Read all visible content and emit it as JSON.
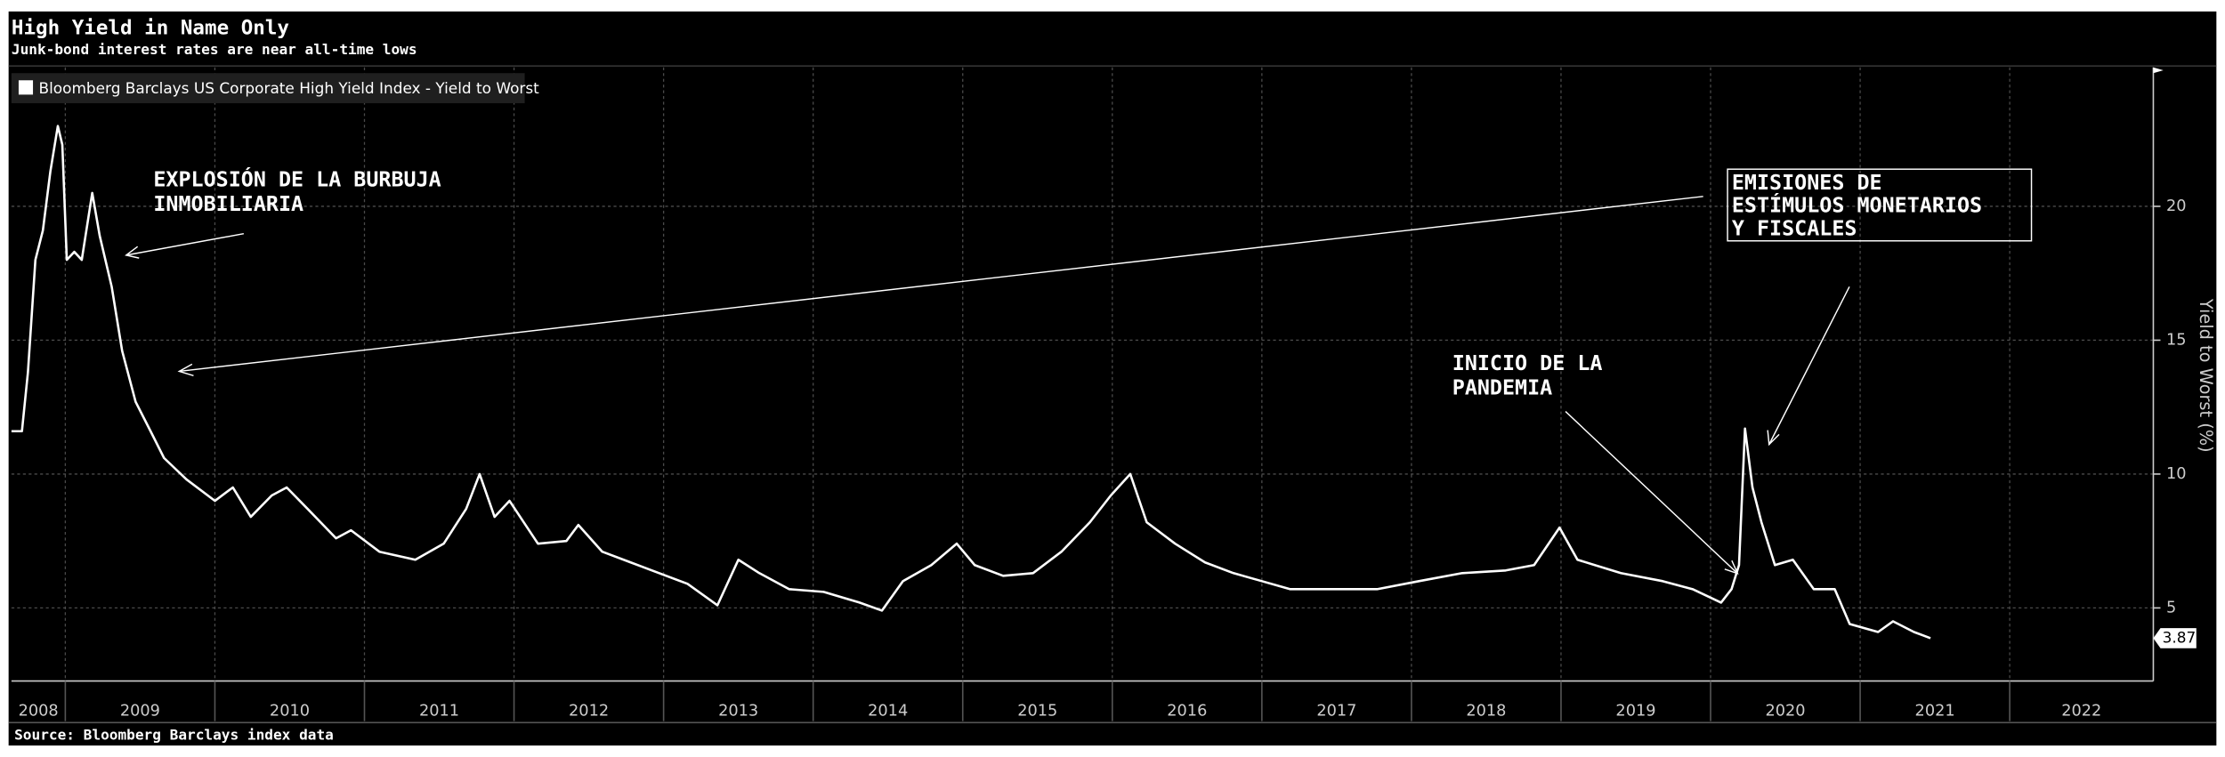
{
  "chart_data": {
    "type": "line",
    "title": "High Yield in Name Only",
    "subtitle": "Junk-bond interest rates are near all-time lows",
    "y_label": "Yield to Worst (%)",
    "source": "Source: Bloomberg Barclays index data",
    "series": [
      {
        "name": "Bloomberg Barclays US Corporate High Yield Index - Yield to Worst",
        "color": "#ffffff",
        "values": [
          11.6,
          11.6,
          13.8,
          18,
          19.1,
          21.3,
          23,
          22.3,
          18,
          18.3,
          18,
          20.5,
          18.9,
          17,
          14.6,
          12.7,
          11.6,
          10.6,
          9.8,
          9,
          9.5,
          8.4,
          9.2,
          9.5,
          8.7,
          7.6,
          7.9,
          7.1,
          6.8,
          7.4,
          8.7,
          10,
          8.4,
          9,
          7.4,
          7.5,
          8.1,
          7.1,
          6.7,
          6.3,
          5.9,
          5.1,
          6.8,
          6.3,
          5.7,
          5.6,
          5.2,
          4.9,
          6,
          6.6,
          7.4,
          6.6,
          6.2,
          6.3,
          7.1,
          8.2,
          9.2,
          10,
          8.2,
          7.4,
          6.7,
          6.3,
          6,
          5.7,
          5.7,
          5.7,
          6,
          6.3,
          6.4,
          6.6,
          8,
          6.8,
          6.3,
          6,
          5.7,
          5.2,
          5.7,
          6.6,
          11.7,
          9.5,
          8.2,
          6.6,
          6.8,
          5.7,
          5.7,
          4.4,
          4.1,
          4.5,
          4.1,
          3.87
        ]
      }
    ],
    "x": [
      2008.64,
      2008.71,
      2008.75,
      2008.8,
      2008.85,
      2008.9,
      2008.95,
      2008.98,
      2009.01,
      2009.06,
      2009.11,
      2009.18,
      2009.23,
      2009.31,
      2009.38,
      2009.47,
      2009.57,
      2009.66,
      2009.81,
      2010.0,
      2010.12,
      2010.24,
      2010.38,
      2010.48,
      2010.62,
      2010.81,
      2010.91,
      2011.1,
      2011.34,
      2011.53,
      2011.68,
      2011.77,
      2011.87,
      2011.97,
      2012.16,
      2012.35,
      2012.43,
      2012.59,
      2012.78,
      2012.97,
      2013.16,
      2013.36,
      2013.5,
      2013.64,
      2013.84,
      2014.07,
      2014.31,
      2014.46,
      2014.6,
      2014.79,
      2014.96,
      2015.08,
      2015.27,
      2015.47,
      2015.66,
      2015.85,
      2015.99,
      2016.12,
      2016.23,
      2016.42,
      2016.62,
      2016.81,
      2017.0,
      2017.19,
      2017.48,
      2017.77,
      2018.05,
      2018.34,
      2018.63,
      2018.82,
      2018.99,
      2019.11,
      2019.4,
      2019.68,
      2019.88,
      2020.07,
      2020.14,
      2020.19,
      2020.23,
      2020.28,
      2020.34,
      2020.43,
      2020.55,
      2020.69,
      2020.83,
      2020.93,
      2021.12,
      2021.22,
      2021.36,
      2021.47
    ],
    "last_value": 3.87,
    "xlim": [
      2008.64,
      2022.96
    ],
    "xticks": [
      2008,
      2009,
      2010,
      2011,
      2012,
      2013,
      2014,
      2015,
      2016,
      2017,
      2018,
      2019,
      2020,
      2021,
      2022
    ],
    "ylim": [
      2.27,
      25.19
    ],
    "yticks": [
      5,
      10,
      15,
      20
    ],
    "grid": true,
    "legend": "top-left",
    "annotations": [
      {
        "lines": [
          "EXPLOSIÓN DE LA BURBUJA",
          "INMOBILIARIA"
        ]
      },
      {
        "lines": [
          "EMISIONES DE",
          "ESTÍMULOS MONETARIOS",
          "Y FISCALES"
        ]
      },
      {
        "lines": [
          "INICIO DE LA",
          "PANDEMIA"
        ]
      }
    ]
  }
}
